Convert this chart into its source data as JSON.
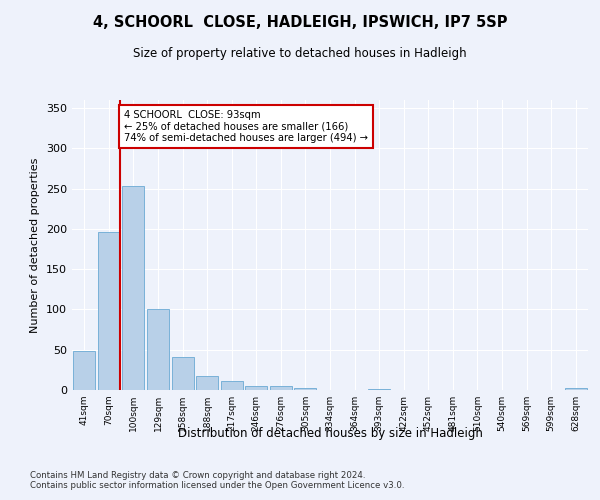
{
  "title": "4, SCHOORL  CLOSE, HADLEIGH, IPSWICH, IP7 5SP",
  "subtitle": "Size of property relative to detached houses in Hadleigh",
  "xlabel": "Distribution of detached houses by size in Hadleigh",
  "ylabel": "Number of detached properties",
  "categories": [
    "41sqm",
    "70sqm",
    "100sqm",
    "129sqm",
    "158sqm",
    "188sqm",
    "217sqm",
    "246sqm",
    "276sqm",
    "305sqm",
    "334sqm",
    "364sqm",
    "393sqm",
    "422sqm",
    "452sqm",
    "481sqm",
    "510sqm",
    "540sqm",
    "569sqm",
    "599sqm",
    "628sqm"
  ],
  "values": [
    48,
    196,
    253,
    101,
    41,
    17,
    11,
    5,
    5,
    3,
    0,
    0,
    1,
    0,
    0,
    0,
    0,
    0,
    0,
    0,
    2
  ],
  "bar_color": "#b8d0e8",
  "bar_edge_color": "#6aaad4",
  "property_line_x": 1.45,
  "annotation_text": "4 SCHOORL  CLOSE: 93sqm\n← 25% of detached houses are smaller (166)\n74% of semi-detached houses are larger (494) →",
  "annotation_box_color": "#ffffff",
  "annotation_box_edge_color": "#cc0000",
  "line_color": "#cc0000",
  "ylim": [
    0,
    360
  ],
  "background_color": "#eef2fb",
  "grid_color": "#ffffff",
  "footer_text": "Contains HM Land Registry data © Crown copyright and database right 2024.\nContains public sector information licensed under the Open Government Licence v3.0."
}
